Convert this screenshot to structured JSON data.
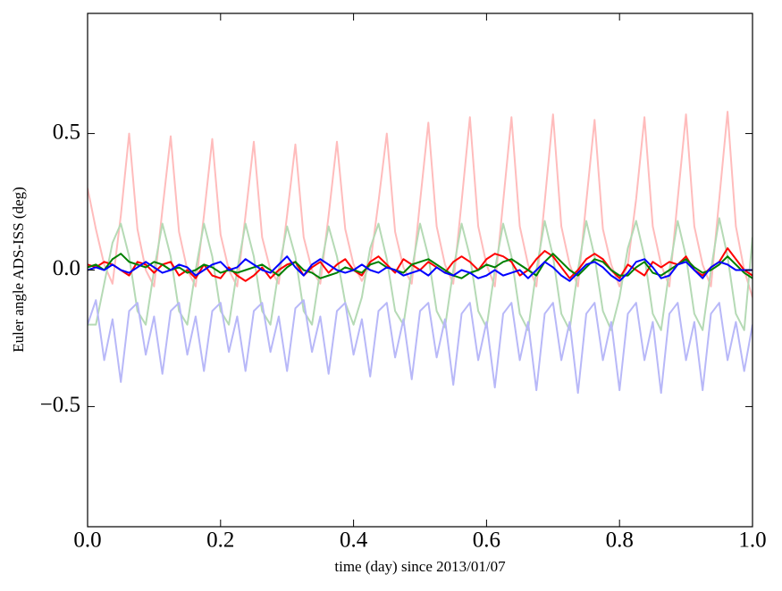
{
  "chart_data": {
    "type": "line",
    "xlabel": "time (day) since 2013/01/07",
    "ylabel": "Euler angle ADS-ISS (deg)",
    "x": [
      0,
      0.0125,
      0.025,
      0.0375,
      0.05,
      0.0625,
      0.075,
      0.0875,
      0.1,
      0.1125,
      0.125,
      0.1375,
      0.15,
      0.1625,
      0.175,
      0.1875,
      0.2,
      0.2125,
      0.225,
      0.2375,
      0.25,
      0.2625,
      0.275,
      0.2875,
      0.3,
      0.3125,
      0.325,
      0.3375,
      0.35,
      0.3625,
      0.375,
      0.3875,
      0.4,
      0.4125,
      0.425,
      0.4375,
      0.45,
      0.4625,
      0.475,
      0.4875,
      0.5,
      0.5125,
      0.525,
      0.5375,
      0.55,
      0.5625,
      0.575,
      0.5875,
      0.6,
      0.6125,
      0.625,
      0.6375,
      0.65,
      0.6625,
      0.675,
      0.6875,
      0.7,
      0.7125,
      0.725,
      0.7375,
      0.75,
      0.7625,
      0.775,
      0.7875,
      0.8,
      0.8125,
      0.825,
      0.8375,
      0.85,
      0.8625,
      0.875,
      0.8875,
      0.9,
      0.9125,
      0.925,
      0.9375,
      0.95,
      0.9625,
      0.975,
      0.9875,
      1
    ],
    "series": [
      {
        "color": "#ffbcbc",
        "values": [
          0.3,
          0.15,
          0.02,
          -0.05,
          0.2,
          0.5,
          0.15,
          0.0,
          -0.06,
          0.22,
          0.49,
          0.14,
          0.0,
          -0.06,
          0.2,
          0.48,
          0.13,
          0.0,
          -0.06,
          0.2,
          0.47,
          0.12,
          0.0,
          -0.05,
          0.2,
          0.46,
          0.12,
          0.0,
          -0.05,
          0.2,
          0.47,
          0.15,
          0.02,
          -0.04,
          0.02,
          0.25,
          0.5,
          0.14,
          0.01,
          -0.05,
          0.25,
          0.54,
          0.16,
          0.02,
          -0.05,
          0.25,
          0.56,
          0.16,
          0.02,
          -0.06,
          0.25,
          0.56,
          0.16,
          0.02,
          -0.06,
          0.25,
          0.57,
          0.16,
          0.02,
          -0.06,
          0.25,
          0.55,
          0.15,
          0.02,
          -0.06,
          0.02,
          0.26,
          0.56,
          0.16,
          0.02,
          -0.06,
          0.26,
          0.57,
          0.16,
          0.02,
          -0.06,
          0.26,
          0.58,
          0.16,
          0.0,
          -0.1
        ]
      },
      {
        "color": "#b5dab5",
        "values": [
          -0.2,
          -0.2,
          -0.05,
          0.1,
          0.17,
          0.05,
          -0.15,
          -0.2,
          0.0,
          0.17,
          0.05,
          -0.15,
          -0.2,
          0.0,
          0.17,
          0.05,
          -0.15,
          -0.2,
          0.0,
          0.17,
          0.05,
          -0.15,
          -0.2,
          0.0,
          0.16,
          0.05,
          -0.15,
          -0.2,
          0.0,
          0.16,
          0.05,
          -0.12,
          -0.2,
          -0.1,
          0.08,
          0.17,
          0.04,
          -0.15,
          -0.2,
          0.0,
          0.17,
          0.05,
          -0.15,
          -0.21,
          0.0,
          0.17,
          0.05,
          -0.15,
          -0.21,
          0.0,
          0.17,
          0.05,
          -0.16,
          -0.22,
          0.0,
          0.18,
          0.05,
          -0.16,
          -0.22,
          0.0,
          0.18,
          0.05,
          -0.15,
          -0.22,
          -0.1,
          0.08,
          0.18,
          0.05,
          -0.16,
          -0.22,
          0.0,
          0.18,
          0.05,
          -0.16,
          -0.22,
          0.0,
          0.19,
          0.05,
          -0.16,
          -0.22,
          0.12
        ]
      },
      {
        "color": "#b8b8f8",
        "values": [
          -0.2,
          -0.11,
          -0.33,
          -0.18,
          -0.41,
          -0.15,
          -0.12,
          -0.31,
          -0.17,
          -0.38,
          -0.15,
          -0.12,
          -0.31,
          -0.17,
          -0.37,
          -0.15,
          -0.12,
          -0.3,
          -0.17,
          -0.37,
          -0.15,
          -0.12,
          -0.3,
          -0.17,
          -0.37,
          -0.14,
          -0.11,
          -0.3,
          -0.17,
          -0.38,
          -0.15,
          -0.12,
          -0.31,
          -0.18,
          -0.39,
          -0.15,
          -0.12,
          -0.32,
          -0.18,
          -0.4,
          -0.15,
          -0.12,
          -0.32,
          -0.18,
          -0.42,
          -0.16,
          -0.12,
          -0.33,
          -0.19,
          -0.43,
          -0.16,
          -0.12,
          -0.33,
          -0.19,
          -0.44,
          -0.16,
          -0.12,
          -0.33,
          -0.19,
          -0.45,
          -0.16,
          -0.12,
          -0.33,
          -0.19,
          -0.44,
          -0.16,
          -0.12,
          -0.33,
          -0.19,
          -0.45,
          -0.16,
          -0.12,
          -0.33,
          -0.19,
          -0.44,
          -0.16,
          -0.12,
          -0.33,
          -0.19,
          -0.37,
          -0.2
        ]
      },
      {
        "color": "#ff0000",
        "values": [
          0.02,
          0.01,
          0.03,
          0.02,
          0.0,
          -0.02,
          0.03,
          0.02,
          -0.01,
          0.02,
          0.03,
          -0.02,
          0.0,
          -0.03,
          0.02,
          -0.02,
          -0.03,
          0.01,
          -0.02,
          -0.04,
          -0.02,
          0.01,
          -0.03,
          0.0,
          0.02,
          0.03,
          -0.02,
          0.01,
          0.03,
          -0.01,
          0.02,
          0.04,
          0.0,
          -0.02,
          0.03,
          0.05,
          0.02,
          -0.01,
          0.04,
          0.02,
          0.0,
          0.03,
          0.01,
          -0.01,
          0.03,
          0.05,
          0.03,
          0.0,
          0.04,
          0.06,
          0.05,
          0.03,
          -0.02,
          0.0,
          0.04,
          0.07,
          0.05,
          0.01,
          -0.03,
          0.0,
          0.04,
          0.06,
          0.04,
          0.0,
          -0.03,
          0.02,
          0.0,
          -0.02,
          0.03,
          0.01,
          0.03,
          0.02,
          0.05,
          0.0,
          -0.02,
          0.01,
          0.03,
          0.08,
          0.04,
          0.0,
          -0.02
        ]
      },
      {
        "color": "#008000",
        "values": [
          0.01,
          0.02,
          0.0,
          0.04,
          0.06,
          0.03,
          0.02,
          0.01,
          0.03,
          0.02,
          0.0,
          0.01,
          -0.01,
          0.0,
          0.02,
          0.01,
          -0.01,
          0.0,
          -0.01,
          0.0,
          0.01,
          0.02,
          0.0,
          -0.02,
          0.01,
          0.03,
          0.0,
          -0.01,
          -0.03,
          -0.02,
          -0.01,
          0.01,
          0.0,
          -0.01,
          0.02,
          0.03,
          0.01,
          0.0,
          -0.01,
          0.02,
          0.03,
          0.04,
          0.02,
          0.0,
          -0.02,
          -0.03,
          -0.01,
          0.0,
          0.02,
          0.01,
          0.03,
          0.04,
          0.02,
          0.0,
          -0.02,
          0.03,
          0.06,
          0.03,
          0.0,
          -0.02,
          0.01,
          0.04,
          0.03,
          0.0,
          -0.02,
          -0.02,
          0.01,
          0.03,
          -0.01,
          -0.02,
          0.0,
          0.02,
          0.04,
          0.01,
          -0.01,
          0.0,
          0.02,
          0.05,
          0.02,
          -0.01,
          -0.03
        ]
      },
      {
        "color": "#0000ff",
        "values": [
          0.0,
          0.01,
          0.0,
          0.02,
          0.0,
          -0.01,
          0.01,
          0.03,
          0.01,
          -0.01,
          0.0,
          0.02,
          0.01,
          -0.02,
          0.0,
          0.02,
          0.03,
          0.0,
          0.01,
          0.04,
          0.02,
          0.0,
          -0.01,
          0.02,
          0.05,
          0.01,
          -0.02,
          0.02,
          0.04,
          0.02,
          0.0,
          -0.01,
          0.0,
          0.02,
          0.0,
          -0.01,
          0.01,
          0.0,
          -0.02,
          -0.01,
          0.0,
          -0.02,
          0.01,
          -0.01,
          -0.02,
          0.0,
          -0.01,
          -0.03,
          -0.02,
          0.0,
          -0.02,
          -0.01,
          0.0,
          -0.03,
          0.0,
          0.03,
          0.01,
          -0.02,
          -0.04,
          -0.01,
          0.02,
          0.03,
          0.01,
          -0.02,
          -0.04,
          -0.01,
          0.03,
          0.04,
          0.01,
          -0.03,
          -0.02,
          0.02,
          0.03,
          0.0,
          -0.03,
          0.01,
          0.03,
          0.02,
          0.0,
          0.0,
          0.0
        ]
      }
    ],
    "xlim": [
      0,
      1
    ],
    "xticks": [
      {
        "value": 0,
        "label": "0.0"
      },
      0.2,
      0.4,
      0.6,
      0.8,
      {
        "value": 1,
        "label": "1.0"
      }
    ],
    "ylim": [
      -0.94,
      0.94
    ],
    "yticks": [
      {
        "value": -0.5,
        "label": "−0.5"
      },
      {
        "value": 0,
        "label": "0.0"
      },
      {
        "value": 0.5,
        "label": "0.5"
      }
    ],
    "grid": false
  }
}
